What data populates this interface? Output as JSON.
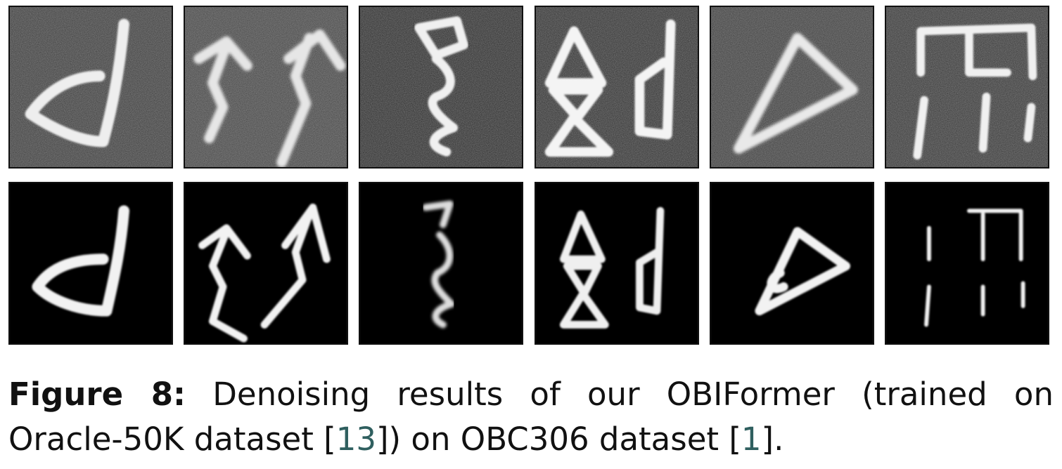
{
  "figure": {
    "rows": [
      {
        "name": "noisy",
        "tiles": [
          {
            "id": "noisy-1",
            "glyph": "d-shape"
          },
          {
            "id": "noisy-2",
            "glyph": "double-zigzag"
          },
          {
            "id": "noisy-3",
            "glyph": "box-over-swirl"
          },
          {
            "id": "noisy-4",
            "glyph": "stacked-triangles-and-d"
          },
          {
            "id": "noisy-5",
            "glyph": "triangle"
          },
          {
            "id": "noisy-6",
            "glyph": "gate-and-bars"
          }
        ]
      },
      {
        "name": "denoised",
        "tiles": [
          {
            "id": "clean-1",
            "glyph": "d-shape"
          },
          {
            "id": "clean-2",
            "glyph": "double-zigzag"
          },
          {
            "id": "clean-3",
            "glyph": "box-over-swirl"
          },
          {
            "id": "clean-4",
            "glyph": "stacked-triangles-and-d"
          },
          {
            "id": "clean-5",
            "glyph": "triangle"
          },
          {
            "id": "clean-6",
            "glyph": "gate-and-bars"
          }
        ]
      }
    ]
  },
  "caption": {
    "label": "Figure 8:",
    "line1_text": "Denoising results of our OBIFormer (trained on",
    "line2_pre": "Oracle-50K dataset [",
    "cite1": "13",
    "line2_mid": "]) on OBC306 dataset [",
    "cite2": "1",
    "line2_post": "]."
  },
  "colors": {
    "citation": "#2f5f5f",
    "stroke": "#f2f2f2",
    "noisy_bg": "#3a3a3a",
    "clean_bg": "#000000"
  }
}
